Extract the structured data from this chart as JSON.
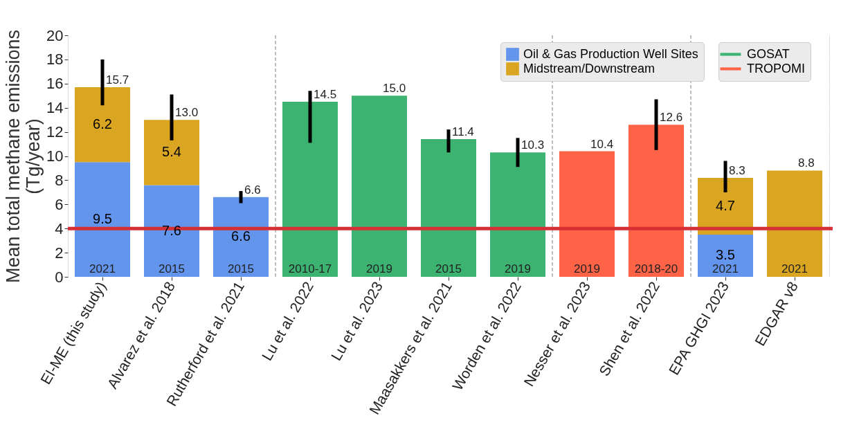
{
  "chart_data": {
    "type": "bar",
    "stacked": true,
    "ylabel": "Mean total methane emissions\n(Tg/year)",
    "categories": [
      "EI-ME (this study)",
      "Alvarez et al. 2018",
      "Rutherford et al. 2021",
      "Lu et al. 2022",
      "Lu et al. 2023",
      "Maasakkers et al. 2021",
      "Worden et al. 2022",
      "Nesser et al. 2023",
      "Shen et al. 2022",
      "EPA GHGI 2023",
      "EDGAR v8"
    ],
    "series": [
      {
        "name": "Oil & Gas Production Well Sites",
        "color": "#6495ed",
        "values": [
          9.5,
          7.6,
          6.6,
          null,
          null,
          null,
          null,
          null,
          null,
          3.5,
          null
        ],
        "value_labels": [
          "9.5",
          "7.6",
          "6.6",
          null,
          null,
          null,
          null,
          null,
          null,
          "3.5",
          null
        ],
        "errors": [
          null,
          null,
          [
            6.1,
            7.1
          ],
          null,
          null,
          null,
          null,
          null,
          null,
          null,
          null
        ]
      },
      {
        "name": "Midstream/Downstream",
        "color": "#daa520",
        "values": [
          6.2,
          5.4,
          null,
          null,
          null,
          null,
          null,
          null,
          null,
          4.7,
          null
        ],
        "value_labels": [
          "6.2",
          "5.4",
          null,
          null,
          null,
          null,
          null,
          null,
          null,
          "4.7",
          null
        ],
        "errors": [
          [
            14.2,
            18.0
          ],
          [
            11.3,
            15.1
          ],
          null,
          null,
          null,
          null,
          null,
          null,
          null,
          [
            7.0,
            9.6
          ],
          null
        ]
      },
      {
        "name": "GOSAT",
        "color": "#3cb371",
        "values": [
          null,
          null,
          null,
          14.5,
          15.0,
          11.4,
          10.3,
          null,
          null,
          null,
          null
        ],
        "errors": [
          null,
          null,
          null,
          [
            11.1,
            15.4
          ],
          null,
          [
            10.3,
            12.2
          ],
          [
            9.1,
            11.5
          ],
          null,
          null,
          null,
          null
        ]
      },
      {
        "name": "TROPOMI",
        "color": "#ff6347",
        "values": [
          null,
          null,
          null,
          null,
          null,
          null,
          null,
          10.4,
          12.6,
          null,
          null
        ],
        "errors": [
          null,
          null,
          null,
          null,
          null,
          null,
          null,
          null,
          [
            10.5,
            14.7
          ],
          null,
          null
        ]
      },
      {
        "color": "#daa520",
        "values": [
          null,
          null,
          null,
          null,
          null,
          null,
          null,
          null,
          null,
          null,
          8.8
        ]
      }
    ],
    "totals": [
      "15.7",
      "13.0",
      "6.6",
      "14.5",
      "15.0",
      "11.4",
      "10.3",
      "10.4",
      "12.6",
      "8.3",
      "8.8"
    ],
    "annotations": [
      {
        "text": "2021",
        "x": "EI-ME (this study)",
        "y": 0
      },
      {
        "text": "2015",
        "x": "Alvarez et al. 2018",
        "y": 0
      },
      {
        "text": "2015",
        "x": "Rutherford et al. 2021",
        "y": 0
      },
      {
        "text": "2010-17",
        "x": "Lu et al. 2022",
        "y": 0
      },
      {
        "text": "2019",
        "x": "Lu et al. 2023",
        "y": 0
      },
      {
        "text": "2015",
        "x": "Maasakkers et al. 2021",
        "y": 0
      },
      {
        "text": "2019",
        "x": "Worden et al. 2022",
        "y": 0
      },
      {
        "text": "2019",
        "x": "Nesser et al. 2023",
        "y": 0
      },
      {
        "text": "2018-20",
        "x": "Shen et al. 2022",
        "y": 0
      },
      {
        "text": "2021",
        "x": "EPA GHGI 2023",
        "y": 0
      },
      {
        "text": "2021",
        "x": "EDGAR v8",
        "y": 0
      }
    ],
    "ref_lines": [
      {
        "axis": "y",
        "value": 4,
        "color": "#d62f35",
        "line_style": "solid"
      }
    ],
    "ylim": [
      0,
      20
    ],
    "yticks": [
      0,
      2,
      4,
      6,
      8,
      10,
      12,
      14,
      16,
      18,
      20
    ],
    "grid": true,
    "legend": "top right"
  }
}
